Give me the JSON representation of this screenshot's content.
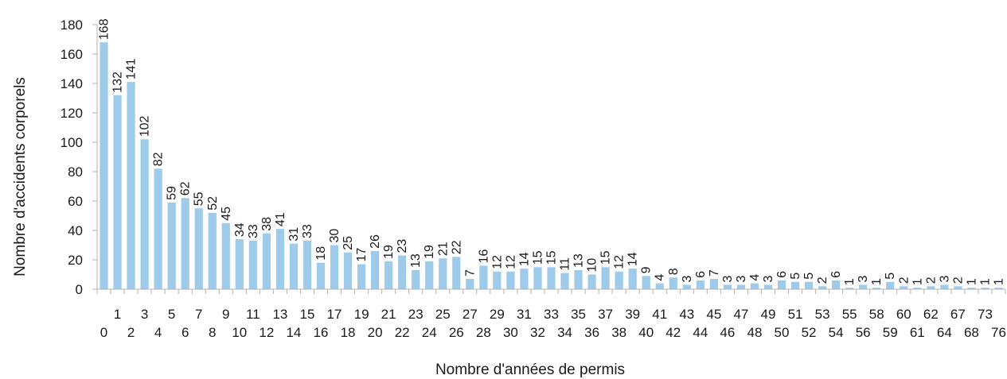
{
  "chart_data": {
    "type": "bar",
    "title": "",
    "xlabel": "Nombre d'années de permis",
    "ylabel": "Nombre d'accidents corporels",
    "ylim": [
      0,
      180
    ],
    "yticks": [
      0,
      20,
      40,
      60,
      80,
      100,
      120,
      140,
      160,
      180
    ],
    "grid": false,
    "legend": "none",
    "bar_color": "#9fcbeb",
    "categories": [
      "0",
      "1",
      "2",
      "3",
      "4",
      "5",
      "6",
      "7",
      "8",
      "9",
      "10",
      "11",
      "12",
      "13",
      "14",
      "15",
      "16",
      "17",
      "18",
      "19",
      "20",
      "21",
      "22",
      "23",
      "24",
      "25",
      "26",
      "27",
      "28",
      "29",
      "30",
      "31",
      "32",
      "33",
      "34",
      "35",
      "36",
      "37",
      "38",
      "39",
      "40",
      "41",
      "42",
      "43",
      "44",
      "45",
      "46",
      "47",
      "48",
      "49",
      "50",
      "51",
      "52",
      "53",
      "54",
      "55",
      "56",
      "58",
      "59",
      "60",
      "61",
      "62",
      "64",
      "67",
      "68",
      "73",
      "76"
    ],
    "values": [
      168,
      132,
      141,
      102,
      82,
      59,
      62,
      55,
      52,
      45,
      34,
      33,
      38,
      41,
      31,
      33,
      18,
      30,
      25,
      17,
      26,
      19,
      23,
      13,
      19,
      21,
      22,
      7,
      16,
      12,
      12,
      14,
      15,
      15,
      11,
      13,
      10,
      15,
      12,
      14,
      9,
      4,
      8,
      3,
      6,
      7,
      3,
      3,
      4,
      3,
      6,
      5,
      5,
      2,
      6,
      1,
      3,
      1,
      5,
      2,
      1,
      2,
      3,
      2,
      1,
      1,
      1
    ]
  }
}
